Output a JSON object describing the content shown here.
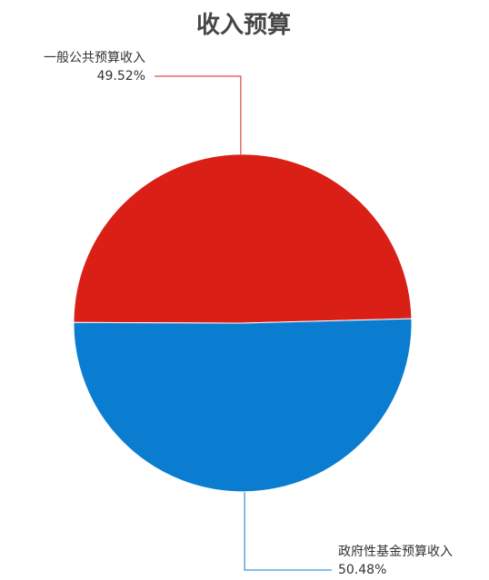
{
  "chart_data": {
    "type": "pie",
    "title": "收入预算",
    "legend": "none",
    "slices": [
      {
        "name": "一般公共预算收入",
        "value": 49.52,
        "percent_label": "49.52%",
        "color": "#d91f16"
      },
      {
        "name": "政府性基金预算收入",
        "value": 50.48,
        "percent_label": "50.48%",
        "color": "#0a7dd1"
      }
    ]
  }
}
